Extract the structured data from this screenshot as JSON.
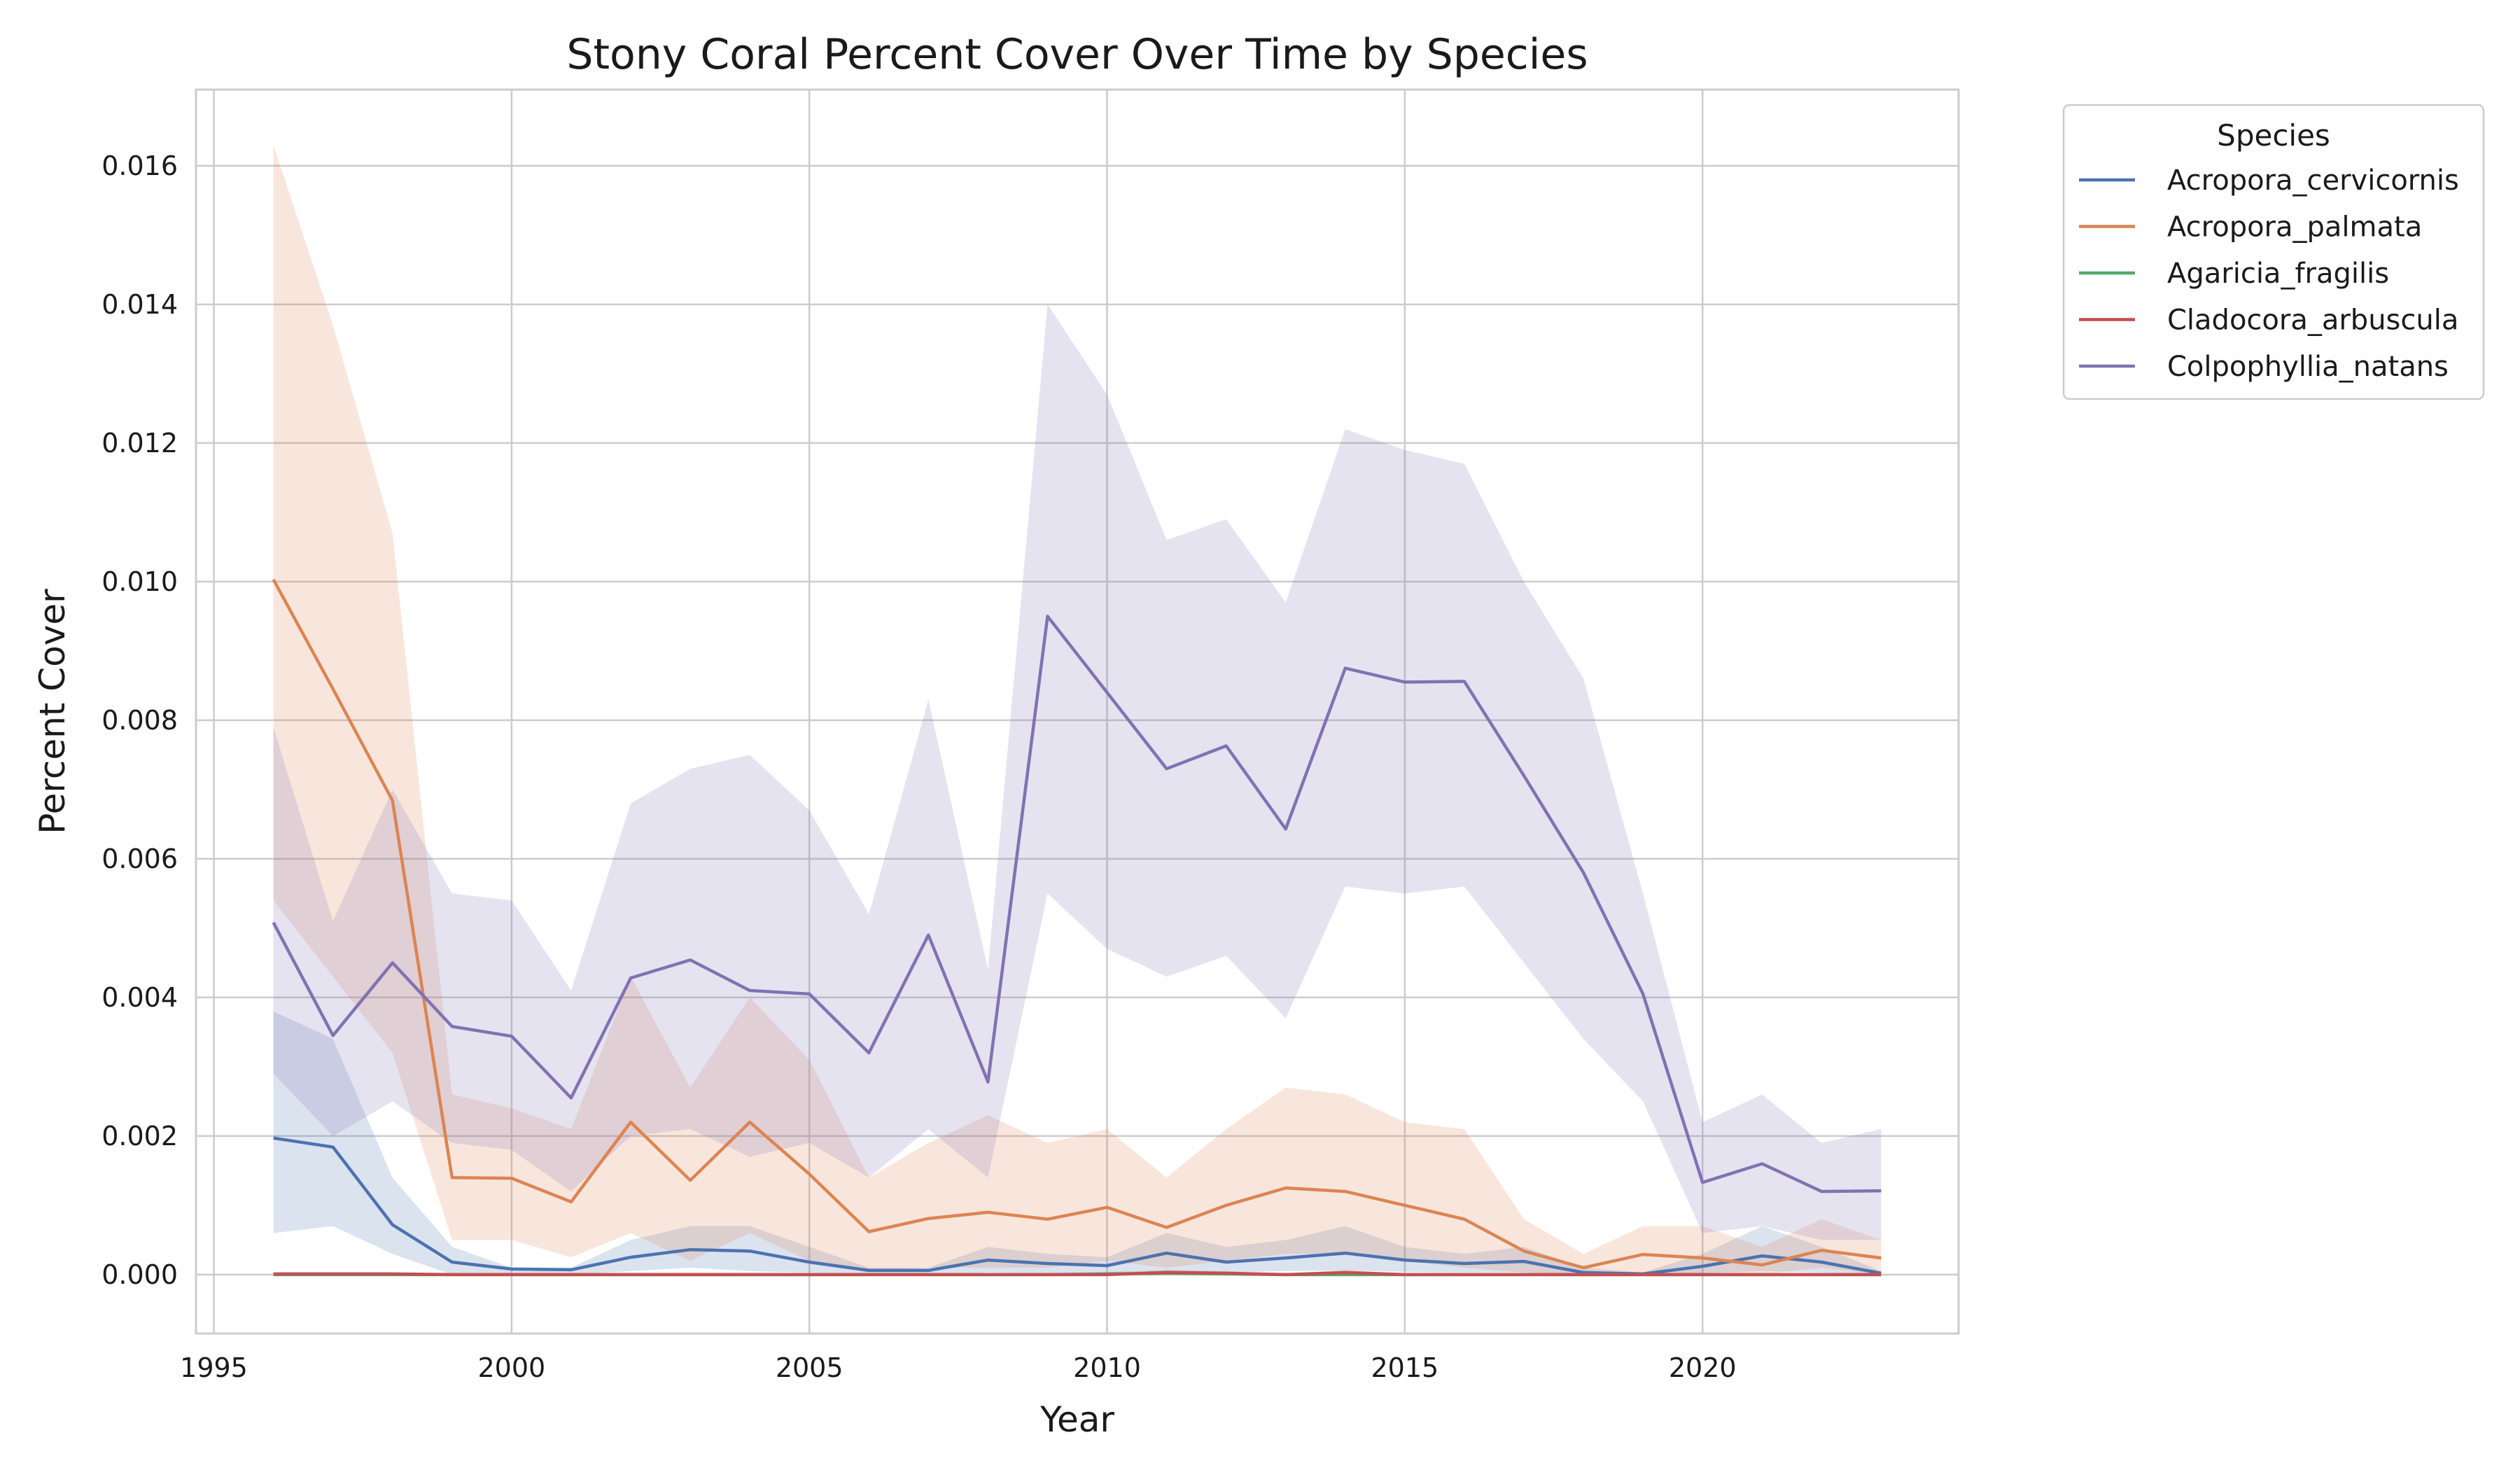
{
  "chart_data": {
    "type": "line",
    "title": "Stony Coral Percent Cover Over Time by Species",
    "xlabel": "Year",
    "ylabel": "Percent Cover",
    "xlim": [
      1994.7,
      2024.3
    ],
    "ylim": [
      -0.00085,
      0.0171
    ],
    "xticks": [
      1995,
      2000,
      2005,
      2010,
      2015,
      2020
    ],
    "yticks": [
      "0.000",
      "0.002",
      "0.004",
      "0.006",
      "0.008",
      "0.010",
      "0.012",
      "0.014",
      "0.016"
    ],
    "grid": true,
    "legend": {
      "title": "Species",
      "placement": "outside-top-right"
    },
    "x": [
      1996,
      1997,
      1998,
      1999,
      2000,
      2001,
      2002,
      2003,
      2004,
      2005,
      2006,
      2007,
      2008,
      2009,
      2010,
      2011,
      2012,
      2013,
      2014,
      2015,
      2016,
      2017,
      2018,
      2019,
      2020,
      2021,
      2022,
      2023
    ],
    "series": [
      {
        "name": "Acropora_cervicornis",
        "color": "#4c72b0",
        "values": [
          0.00197,
          0.00184,
          0.00072,
          0.00018,
          8e-05,
          7e-05,
          0.00025,
          0.00036,
          0.00034,
          0.00018,
          6e-05,
          6e-05,
          0.00021,
          0.00016,
          0.00013,
          0.00031,
          0.00018,
          0.00024,
          0.00031,
          0.00021,
          0.00016,
          0.00019,
          3e-05,
          1e-05,
          0.00012,
          0.00027,
          0.00018,
          2e-05
        ],
        "lower": [
          0.0006,
          0.0007,
          0.0003,
          0.0,
          0.0,
          0.0,
          5e-05,
          0.0001,
          5e-05,
          3e-05,
          0.0,
          0.0,
          3e-05,
          2e-05,
          2e-05,
          5e-05,
          3e-05,
          5e-05,
          6e-05,
          4e-05,
          3e-05,
          3e-05,
          0.0,
          0.0,
          2e-05,
          5e-05,
          3e-05,
          0.0
        ],
        "upper": [
          0.0038,
          0.0034,
          0.0014,
          0.0004,
          0.0001,
          0.0001,
          0.0005,
          0.0007,
          0.0007,
          0.0004,
          0.0001,
          0.0001,
          0.0004,
          0.0003,
          0.00025,
          0.0006,
          0.0004,
          0.0005,
          0.0007,
          0.0004,
          0.0003,
          0.0004,
          0.0001,
          3e-05,
          0.0003,
          0.0007,
          0.0004,
          5e-05
        ]
      },
      {
        "name": "Acropora_palmata",
        "color": "#dd8452",
        "values": [
          0.01003,
          0.00845,
          0.00684,
          0.0014,
          0.00139,
          0.00105,
          0.0022,
          0.00136,
          0.0022,
          0.00145,
          0.00062,
          0.00081,
          0.0009,
          0.0008,
          0.00097,
          0.00068,
          0.001,
          0.00125,
          0.0012,
          0.001,
          0.0008,
          0.00034,
          0.0001,
          0.00029,
          0.00024,
          0.00014,
          0.00035,
          0.00024
        ],
        "lower": [
          0.0054,
          0.0043,
          0.0032,
          0.0005,
          0.0005,
          0.00025,
          0.0006,
          0.0002,
          0.0006,
          0.0002,
          5e-05,
          0.0001,
          0.0001,
          0.0001,
          0.0002,
          0.0001,
          0.0002,
          0.0003,
          0.0003,
          0.0002,
          0.0001,
          3e-05,
          0.0,
          0.0,
          0.0,
          0.0,
          0.0001,
          0.0
        ],
        "upper": [
          0.0163,
          0.0137,
          0.0107,
          0.0026,
          0.0024,
          0.0021,
          0.0043,
          0.0027,
          0.004,
          0.0031,
          0.0014,
          0.0019,
          0.0023,
          0.0019,
          0.0021,
          0.0014,
          0.0021,
          0.0027,
          0.0026,
          0.0022,
          0.0021,
          0.0008,
          0.0003,
          0.0007,
          0.0007,
          0.0004,
          0.0008,
          0.0005
        ]
      },
      {
        "name": "Agaricia_fragilis",
        "color": "#55a868",
        "values": [
          0.0,
          0.0,
          0.0,
          0.0,
          0.0,
          0.0,
          0.0,
          0.0,
          0.0,
          0.0,
          0.0,
          0.0,
          0.0,
          0.0,
          1e-05,
          2e-05,
          1e-05,
          0.0,
          0.0,
          0.0,
          0.0,
          0.0,
          0.0,
          0.0,
          0.0,
          0.0,
          0.0,
          0.0
        ],
        "lower": [
          0.0,
          0.0,
          0.0,
          0.0,
          0.0,
          0.0,
          0.0,
          0.0,
          0.0,
          0.0,
          0.0,
          0.0,
          0.0,
          0.0,
          0.0,
          0.0,
          0.0,
          0.0,
          0.0,
          0.0,
          0.0,
          0.0,
          0.0,
          0.0,
          0.0,
          0.0,
          0.0,
          0.0
        ],
        "upper": [
          1e-05,
          1e-05,
          1e-05,
          1e-05,
          1e-05,
          1e-05,
          1e-05,
          1e-05,
          1e-05,
          1e-05,
          1e-05,
          1e-05,
          1e-05,
          2e-05,
          4e-05,
          6e-05,
          4e-05,
          2e-05,
          2e-05,
          1e-05,
          1e-05,
          1e-05,
          1e-05,
          1e-05,
          1e-05,
          1e-05,
          1e-05,
          1e-05
        ]
      },
      {
        "name": "Cladocora_arbuscula",
        "color": "#c44e52",
        "values": [
          1e-05,
          1e-05,
          1e-05,
          0.0,
          0.0,
          0.0,
          0.0,
          0.0,
          0.0,
          0.0,
          0.0,
          0.0,
          0.0,
          0.0,
          0.0,
          3e-05,
          2e-05,
          0.0,
          3e-05,
          0.0,
          0.0,
          0.0,
          0.0,
          0.0,
          0.0,
          0.0,
          0.0,
          0.0
        ],
        "lower": [
          0.0,
          0.0,
          0.0,
          0.0,
          0.0,
          0.0,
          0.0,
          0.0,
          0.0,
          0.0,
          0.0,
          0.0,
          0.0,
          0.0,
          0.0,
          0.0,
          0.0,
          0.0,
          0.0,
          0.0,
          0.0,
          0.0,
          0.0,
          0.0,
          0.0,
          0.0,
          0.0,
          0.0
        ],
        "upper": [
          2e-05,
          2e-05,
          2e-05,
          1e-05,
          1e-05,
          1e-05,
          1e-05,
          1e-05,
          1e-05,
          1e-05,
          1e-05,
          1e-05,
          1e-05,
          1e-05,
          1e-05,
          7e-05,
          5e-05,
          1e-05,
          7e-05,
          1e-05,
          1e-05,
          1e-05,
          1e-05,
          1e-05,
          1e-05,
          1e-05,
          1e-05,
          1e-05
        ]
      },
      {
        "name": "Colpophyllia_natans",
        "color": "#8172b3",
        "values": [
          0.00508,
          0.00345,
          0.0045,
          0.00358,
          0.00344,
          0.00255,
          0.00428,
          0.00454,
          0.0041,
          0.00405,
          0.0032,
          0.0049,
          0.00278,
          0.0095,
          0.0084,
          0.0073,
          0.00763,
          0.00643,
          0.00875,
          0.00855,
          0.00856,
          0.0072,
          0.0058,
          0.00405,
          0.00133,
          0.0016,
          0.0012,
          0.00121
        ],
        "lower": [
          0.0029,
          0.002,
          0.0025,
          0.0019,
          0.0018,
          0.0012,
          0.002,
          0.0021,
          0.0017,
          0.0019,
          0.0014,
          0.0021,
          0.0014,
          0.0055,
          0.0047,
          0.0043,
          0.0046,
          0.0037,
          0.0056,
          0.0055,
          0.0056,
          0.0045,
          0.0034,
          0.0025,
          0.0006,
          0.0007,
          0.0005,
          0.0005
        ],
        "upper": [
          0.0079,
          0.0051,
          0.007,
          0.0055,
          0.0054,
          0.0041,
          0.0068,
          0.0073,
          0.0075,
          0.0067,
          0.0052,
          0.0083,
          0.0044,
          0.014,
          0.0127,
          0.0106,
          0.0109,
          0.0097,
          0.0122,
          0.0119,
          0.0117,
          0.01,
          0.0086,
          0.0055,
          0.0022,
          0.0026,
          0.0019,
          0.0021
        ]
      }
    ]
  }
}
